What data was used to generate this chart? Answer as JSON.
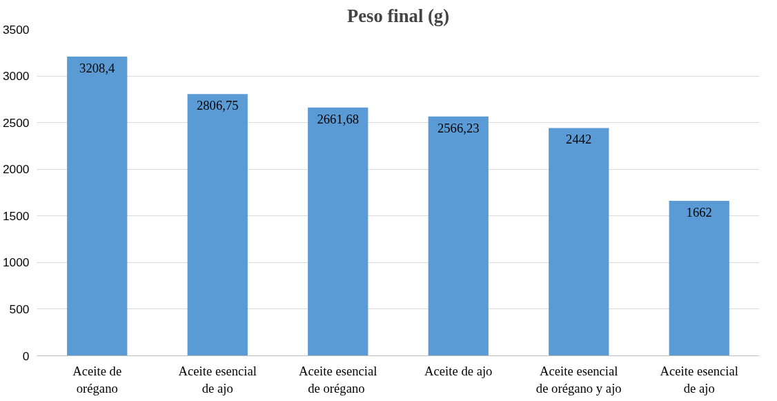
{
  "chart_data": {
    "type": "bar",
    "title": "Peso final (g)",
    "categories": [
      "Aceite de orégano",
      "Aceite esencial de ajo",
      "Aceite esencial de  orégano",
      "Aceite de ajo",
      "Aceite esencial de orégano y ajo",
      "Aceite esencial de ajo"
    ],
    "values": [
      3208.4,
      2806.75,
      2661.68,
      2566.23,
      2442,
      1662
    ],
    "value_labels": [
      "3208,4",
      "2806,75",
      "2661,68",
      "2566,23",
      "2442",
      "1662"
    ],
    "color": "#5b9bd5",
    "ylim": [
      0,
      3500
    ],
    "yticks": [
      0,
      500,
      1000,
      1500,
      2000,
      2500,
      3000,
      3500
    ],
    "grid": "y"
  }
}
